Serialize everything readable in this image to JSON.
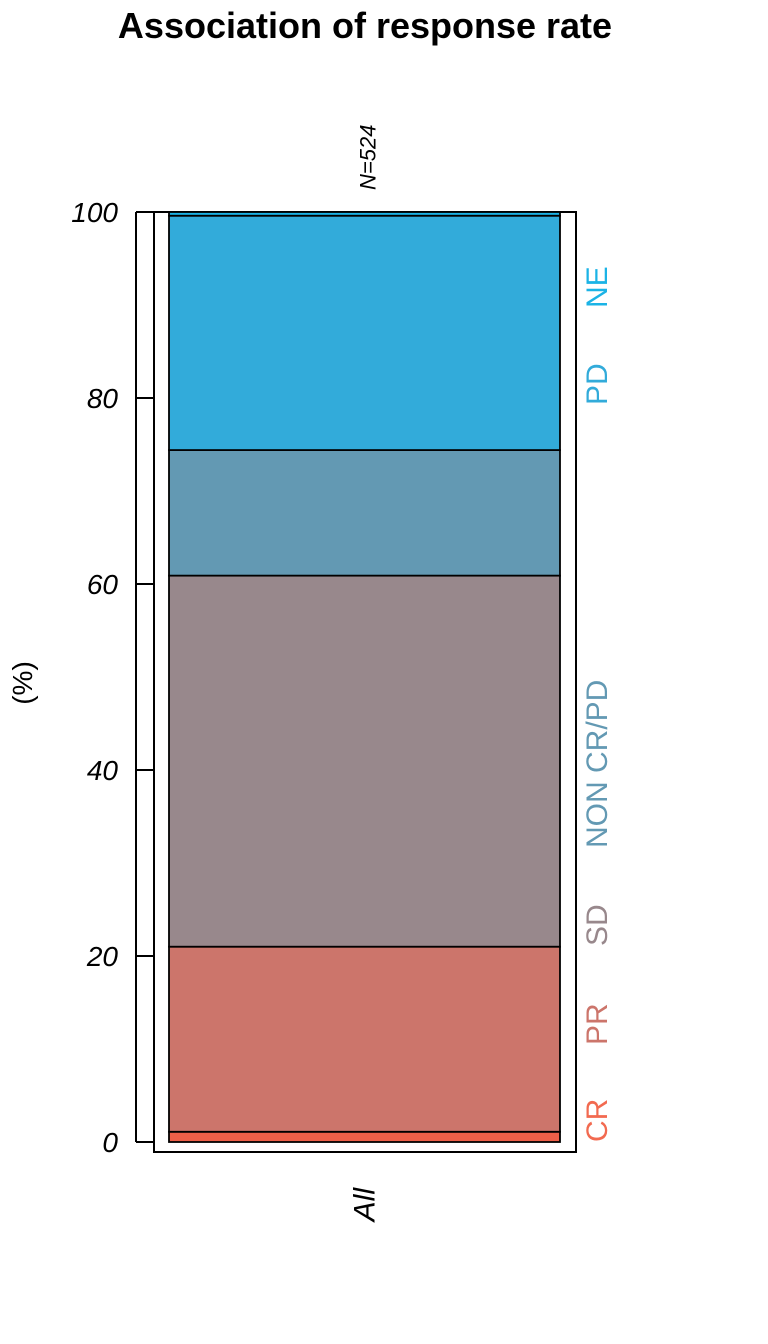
{
  "chart_data": {
    "type": "bar",
    "stacked": true,
    "percent": true,
    "title": "Association of response rate",
    "ylabel": "(%)",
    "xlabel": "",
    "ylim": [
      0,
      100
    ],
    "yticks": [
      0,
      20,
      40,
      60,
      80,
      100
    ],
    "grid": false,
    "legend_placement": "right",
    "categories": [
      "All"
    ],
    "category_counts": [
      "N=524"
    ],
    "series": [
      {
        "name": "CR",
        "values": [
          1.1
        ],
        "color": "#ED5F48",
        "label_color": "#F26A50"
      },
      {
        "name": "PR",
        "values": [
          19.9
        ],
        "color": "#CC756B",
        "label_color": "#CC756B"
      },
      {
        "name": "SD",
        "values": [
          39.9
        ],
        "color": "#98888C",
        "label_color": "#98888C"
      },
      {
        "name": "NON CR/PD",
        "values": [
          13.5
        ],
        "color": "#6399B3",
        "label_color": "#6399B3"
      },
      {
        "name": "PD",
        "values": [
          25.2
        ],
        "color": "#32ABDA",
        "label_color": "#32ABDA"
      },
      {
        "name": "NE",
        "values": [
          0.4
        ],
        "color": "#1BB3E6",
        "label_color": "#1BB3E6"
      }
    ]
  }
}
